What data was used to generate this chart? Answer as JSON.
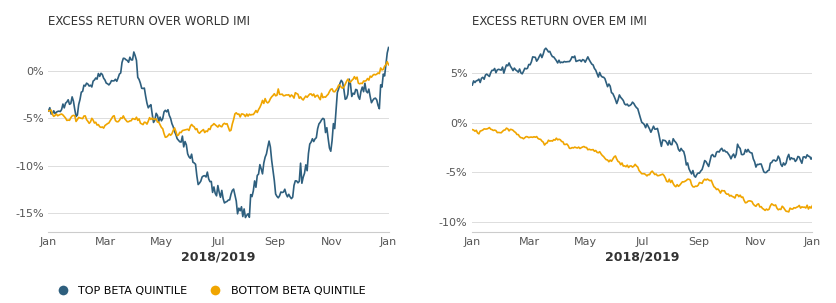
{
  "title_left": "EXCESS RETURN OVER WORLD IMI",
  "title_right": "EXCESS RETURN OVER EM IMI",
  "xlabel": "2018/2019",
  "color_top": "#2e5f7e",
  "color_bottom": "#f0a500",
  "legend_top": "TOP BETA QUINTILE",
  "legend_bottom": "BOTTOM BETA QUINTILE",
  "xtick_labels": [
    "Jan",
    "Mar",
    "May",
    "Jul",
    "Sep",
    "Nov",
    "Jan"
  ],
  "left_yticks": [
    0,
    -5,
    -10,
    -15
  ],
  "left_ylim": [
    -17,
    4
  ],
  "right_yticks": [
    5,
    0,
    -5,
    -10
  ],
  "right_ylim": [
    -11,
    9
  ],
  "background_color": "#ffffff",
  "grid_color": "#dddddd"
}
